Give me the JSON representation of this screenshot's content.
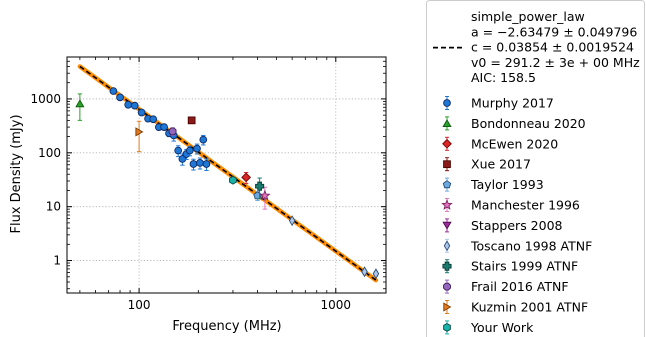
{
  "chart_data": {
    "type": "scatter",
    "xlabel": "Frequency (MHz)",
    "ylabel": "Flux Density (mJy)",
    "xscale": "log",
    "yscale": "log",
    "xlim": [
      43,
      1800
    ],
    "ylim": [
      0.25,
      6000
    ],
    "x_ticks": [
      100,
      1000
    ],
    "x_tick_labels": [
      "100",
      "1000"
    ],
    "y_ticks": [
      1,
      10,
      100,
      1000
    ],
    "y_tick_labels": [
      "1",
      "10",
      "100",
      "1000"
    ],
    "grid": true,
    "legend_position": "outside-right",
    "fit": {
      "name_lines": [
        "simple_power_law",
        "a = −2.63479 ± 0.049796",
        "c = 0.03854 ± 0.0019524",
        "v0 = 291.2 ± 3e + 00 MHz",
        "AIC: 158.5"
      ],
      "a": -2.63479,
      "c": 0.03854,
      "v0": 291.2,
      "x_range": [
        50,
        1600
      ],
      "color": "#000000",
      "band_color": "#ff8c00"
    },
    "series": [
      {
        "name": "Murphy 2017",
        "marker": "circle",
        "color": "#1f77d4",
        "edge": "#0b2a6b",
        "points": [
          {
            "x": 74,
            "y": 1400,
            "err": 140
          },
          {
            "x": 80,
            "y": 1070,
            "err": 110
          },
          {
            "x": 88,
            "y": 780,
            "err": 80
          },
          {
            "x": 95,
            "y": 750,
            "err": 75
          },
          {
            "x": 103,
            "y": 560,
            "err": 56
          },
          {
            "x": 111,
            "y": 430,
            "err": 45
          },
          {
            "x": 118,
            "y": 420,
            "err": 45
          },
          {
            "x": 126,
            "y": 300,
            "err": 32
          },
          {
            "x": 134,
            "y": 300,
            "err": 32
          },
          {
            "x": 142,
            "y": 230,
            "err": 30
          },
          {
            "x": 150,
            "y": 210,
            "err": 45
          },
          {
            "x": 158,
            "y": 110,
            "err": 25
          },
          {
            "x": 166,
            "y": 77,
            "err": 18
          },
          {
            "x": 174,
            "y": 95,
            "err": 20
          },
          {
            "x": 181,
            "y": 110,
            "err": 22
          },
          {
            "x": 189,
            "y": 62,
            "err": 14
          },
          {
            "x": 197,
            "y": 120,
            "err": 25
          },
          {
            "x": 204,
            "y": 65,
            "err": 15
          },
          {
            "x": 212,
            "y": 175,
            "err": 35
          },
          {
            "x": 220,
            "y": 62,
            "err": 15
          }
        ]
      },
      {
        "name": "Bondonneau 2020",
        "marker": "triangle-up",
        "color": "#2ca02c",
        "edge": "#0a5a0a",
        "points": [
          {
            "x": 50,
            "y": 820,
            "err": 420
          }
        ]
      },
      {
        "name": "McEwen 2020",
        "marker": "diamond",
        "color": "#d62728",
        "edge": "#7a0000",
        "points": [
          {
            "x": 350,
            "y": 35,
            "err": 8
          }
        ]
      },
      {
        "name": "Xue 2017",
        "marker": "square",
        "color": "#8c1a1a",
        "edge": "#4a0000",
        "points": [
          {
            "x": 185,
            "y": 400,
            "err": 0
          }
        ]
      },
      {
        "name": "Taylor 1993",
        "marker": "pentagon",
        "color": "#6fa8dc",
        "edge": "#1f4f7a",
        "points": [
          {
            "x": 400,
            "y": 16,
            "err": 3
          }
        ]
      },
      {
        "name": "Manchester 1996",
        "marker": "star",
        "color": "#e377c2",
        "edge": "#7a1f5e",
        "points": [
          {
            "x": 436,
            "y": 16,
            "err": 7
          }
        ]
      },
      {
        "name": "Stappers 2008",
        "marker": "triangle-down",
        "color": "#9b2d9b",
        "edge": "#4a0a4a",
        "points": []
      },
      {
        "name": "Toscano 1998 ATNF",
        "marker": "thin-diamond",
        "color": "#aec7e8",
        "edge": "#2a4a7a",
        "points": [
          {
            "x": 600,
            "y": 5.5,
            "err": 0.5
          },
          {
            "x": 1400,
            "y": 0.62,
            "err": 0.06
          },
          {
            "x": 1600,
            "y": 0.57,
            "err": 0.06
          }
        ]
      },
      {
        "name": "Stairs 1999 ATNF",
        "marker": "plus",
        "color": "#1a7a6e",
        "edge": "#0a3a34",
        "points": [
          {
            "x": 410,
            "y": 24,
            "err": 10
          }
        ]
      },
      {
        "name": "Frail 2016 ATNF",
        "marker": "octagon",
        "color": "#9467bd",
        "edge": "#3a1a5a",
        "points": [
          {
            "x": 148,
            "y": 250,
            "err": 40
          }
        ]
      },
      {
        "name": "Kuzmin 2001 ATNF",
        "marker": "triangle-right",
        "color": "#e07b20",
        "edge": "#7a3a00",
        "points": [
          {
            "x": 100,
            "y": 245,
            "err": 140
          }
        ]
      },
      {
        "name": "Your Work",
        "marker": "hexagon",
        "color": "#17b3a8",
        "edge": "#0a4a46",
        "points": [
          {
            "x": 300,
            "y": 31,
            "err": 3
          }
        ]
      }
    ]
  }
}
